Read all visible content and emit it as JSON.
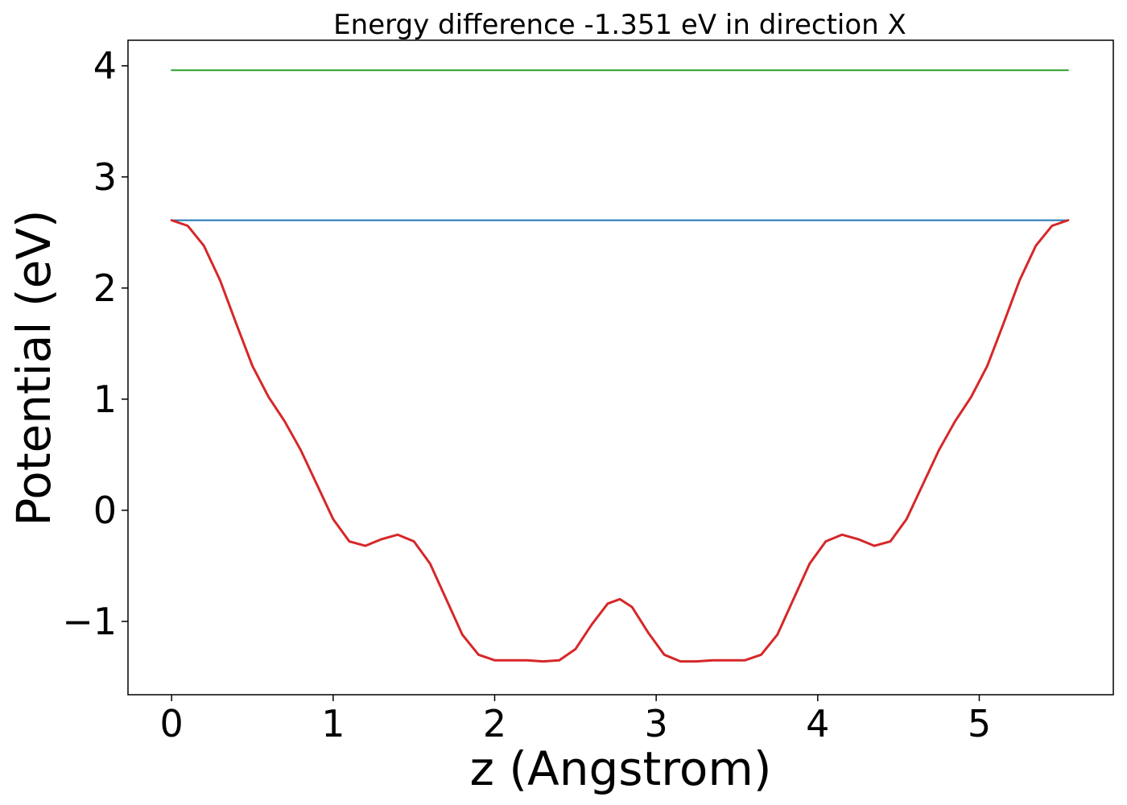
{
  "chart_data": {
    "type": "line",
    "title": "Energy difference -1.351 eV in direction X",
    "xlabel": "z (Angstrom)",
    "ylabel": "Potential (eV)",
    "xlim": [
      -0.27,
      5.83
    ],
    "ylim": [
      -1.66,
      4.23
    ],
    "xticks": [
      0,
      1,
      2,
      3,
      4,
      5
    ],
    "xtick_labels": [
      "0",
      "1",
      "2",
      "3",
      "4",
      "5"
    ],
    "yticks": [
      -1,
      0,
      1,
      2,
      3,
      4
    ],
    "ytick_labels": [
      "−1",
      "0",
      "1",
      "2",
      "3",
      "4"
    ],
    "grid": false,
    "series": [
      {
        "color": "#2ca02c",
        "x": [
          0,
          5.55
        ],
        "y": [
          3.96,
          3.96
        ]
      },
      {
        "color": "#1f77b4",
        "x": [
          0,
          5.55
        ],
        "y": [
          2.61,
          2.61
        ]
      },
      {
        "color": "#d62728",
        "x": [
          0,
          0.1,
          0.2,
          0.3,
          0.4,
          0.5,
          0.6,
          0.7,
          0.8,
          0.9,
          1.0,
          1.1,
          1.2,
          1.3,
          1.4,
          1.5,
          1.6,
          1.7,
          1.8,
          1.9,
          2.0,
          2.1,
          2.2,
          2.3,
          2.4,
          2.5,
          2.6,
          2.7,
          2.775,
          2.85,
          2.95,
          3.05,
          3.15,
          3.25,
          3.35,
          3.45,
          3.55,
          3.65,
          3.75,
          3.85,
          3.95,
          4.05,
          4.15,
          4.25,
          4.35,
          4.45,
          4.55,
          4.65,
          4.75,
          4.85,
          4.95,
          5.05,
          5.15,
          5.25,
          5.35,
          5.45,
          5.55
        ],
        "y": [
          2.61,
          2.56,
          2.38,
          2.07,
          1.68,
          1.3,
          1.02,
          0.8,
          0.54,
          0.23,
          -0.08,
          -0.28,
          -0.32,
          -0.26,
          -0.22,
          -0.28,
          -0.48,
          -0.8,
          -1.12,
          -1.3,
          -1.35,
          -1.35,
          -1.35,
          -1.36,
          -1.35,
          -1.25,
          -1.03,
          -0.84,
          -0.8,
          -0.87,
          -1.1,
          -1.3,
          -1.36,
          -1.36,
          -1.35,
          -1.35,
          -1.35,
          -1.3,
          -1.12,
          -0.8,
          -0.48,
          -0.28,
          -0.22,
          -0.26,
          -0.32,
          -0.28,
          -0.08,
          0.23,
          0.54,
          0.8,
          1.02,
          1.3,
          1.68,
          2.07,
          2.38,
          2.56,
          2.61
        ]
      }
    ]
  }
}
